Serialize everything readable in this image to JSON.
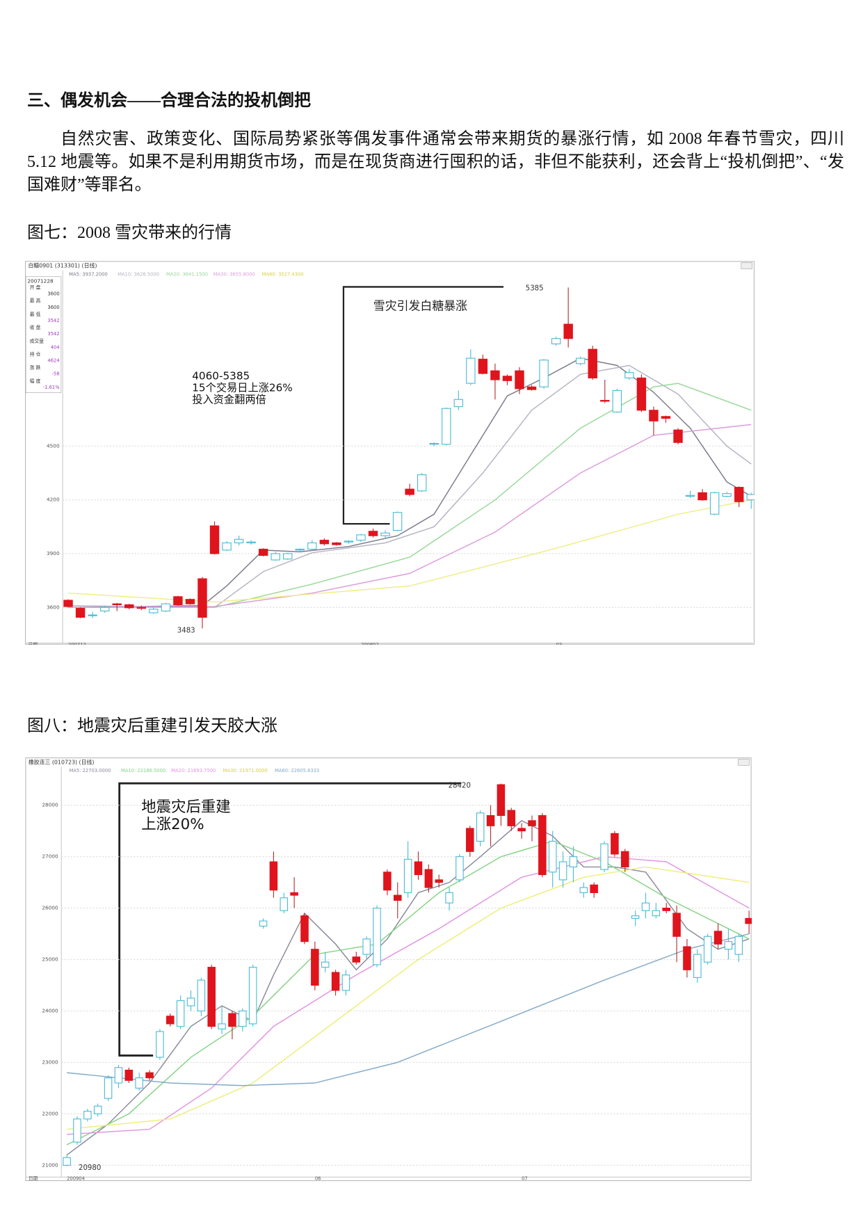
{
  "document": {
    "heading": "三、偶发机会——合理合法的投机倒把",
    "paragraph": "自然灾害、政策变化、国际局势紧张等偶发事件通常会带来期货的暴涨行情，如 2008 年春节雪灾，四川 5.12 地震等。如果不是利用期货市场，而是在现货商进行囤积的话，非但不能获利，还会背上“投机倒把”、“发国难财”等罪名。",
    "captions": [
      "图七：2008 雪灾带来的行情",
      "图八：地震灾后重建引发天胶大涨"
    ]
  },
  "chart_data": [
    {
      "type": "candlestick",
      "title": "白糖0901 (313301) (日线)",
      "axis_label": "日期",
      "ma_legend": [
        "MA5: 3937.2000",
        "MA10: 3626.5000",
        "MA20: 3641.1500",
        "MA30: 3655.8000",
        "MA60: 3527.4300"
      ],
      "info": {
        "date": "20071228",
        "items": [
          {
            "label": "开 盘",
            "value": 3600
          },
          {
            "label": "最 高",
            "value": 3600
          },
          {
            "label": "最 低",
            "value": 3542
          },
          {
            "label": "收 盘",
            "value": 3542
          },
          {
            "label": "成交量",
            "value": 404
          },
          {
            "label": "持 仓",
            "value": 4624
          },
          {
            "label": "涨 跌",
            "value": -58
          },
          {
            "label": "幅 度",
            "value": "-1.61%"
          }
        ]
      },
      "categories": [
        "200712",
        null,
        null,
        null,
        null,
        null,
        null,
        null,
        null,
        null,
        null,
        null,
        null,
        null,
        null,
        null,
        null,
        null,
        null,
        null,
        null,
        null,
        null,
        null,
        "200802",
        null,
        null,
        null,
        null,
        null,
        null,
        null,
        null,
        null,
        null,
        null,
        null,
        null,
        null,
        null,
        "03",
        null,
        null,
        null,
        null,
        null,
        null,
        null,
        null,
        null,
        null,
        null,
        null,
        null,
        null,
        null,
        null
      ],
      "candles": {
        "open": [
          3605,
          3545,
          3558,
          3600,
          3615,
          3598,
          3595,
          3590,
          3620,
          3615,
          3620,
          3545,
          3900,
          3960,
          3980,
          3965,
          3890,
          3900,
          3900,
          3925,
          3960,
          3955,
          3950,
          3970,
          4005,
          4000,
          4015,
          4130,
          4230,
          4340,
          4515,
          4710,
          4760,
          4990,
          4905,
          4870,
          4865,
          4820,
          4815,
          4980,
          5100,
          5100,
          4990,
          4880,
          4750,
          4810,
          4910,
          4700,
          4640,
          4655,
          4520,
          4225,
          4200,
          4240,
          4235,
          4190,
          4230
        ],
        "high": [
          3645,
          3600,
          3575,
          3610,
          3625,
          3620,
          3610,
          3600,
          3625,
          3665,
          3650,
          3770,
          4080,
          3970,
          4000,
          3975,
          3930,
          3910,
          3905,
          3930,
          3975,
          3985,
          3965,
          3975,
          4010,
          4040,
          4030,
          4135,
          4290,
          4350,
          4520,
          4715,
          4810,
          5040,
          5010,
          4960,
          4900,
          4940,
          4840,
          4985,
          5110,
          5385,
          5000,
          5060,
          4870,
          4820,
          4930,
          4900,
          4720,
          4670,
          4600,
          4250,
          4260,
          4245,
          4245,
          4275,
          4240
        ],
        "low": [
          3600,
          3540,
          3540,
          3570,
          3580,
          3590,
          3585,
          3565,
          3575,
          3610,
          3615,
          3483,
          3895,
          3915,
          3945,
          3950,
          3885,
          3860,
          3865,
          3910,
          3920,
          3945,
          3945,
          3955,
          3965,
          3990,
          3985,
          4025,
          4220,
          4245,
          4500,
          4505,
          4700,
          4840,
          4900,
          4760,
          4840,
          4790,
          4810,
          4820,
          5060,
          5050,
          4950,
          4870,
          4740,
          4685,
          4870,
          4690,
          4560,
          4630,
          4510,
          4210,
          4195,
          4115,
          4215,
          4160,
          4150
        ],
        "close": [
          3640,
          3595,
          3555,
          3580,
          3620,
          3615,
          3600,
          3570,
          3580,
          3660,
          3645,
          3760,
          4055,
          3920,
          3960,
          3960,
          3925,
          3865,
          3870,
          3920,
          3925,
          3975,
          3960,
          3965,
          3975,
          4025,
          4000,
          4030,
          4260,
          4250,
          4510,
          4510,
          4720,
          4850,
          4985,
          4920,
          4890,
          4920,
          4830,
          4830,
          5070,
          5180,
          4960,
          5040,
          4755,
          4690,
          4880,
          4880,
          4700,
          4665,
          4590,
          4220,
          4240,
          4120,
          4220,
          4270,
          4200
        ]
      },
      "series": [
        {
          "color": "#7a7a8c",
          "x": [
            0,
            11,
            13,
            16,
            19,
            23,
            27,
            30,
            33,
            36,
            39,
            42,
            45,
            48,
            51,
            54,
            56
          ],
          "values": [
            3600,
            3610,
            3720,
            3920,
            3910,
            3940,
            4000,
            4120,
            4450,
            4780,
            4880,
            4990,
            4950,
            4800,
            4600,
            4300,
            4220
          ]
        },
        {
          "color": "#b4b4c4",
          "x": [
            0,
            12,
            16,
            20,
            26,
            30,
            34,
            38,
            42,
            46,
            50,
            54,
            56
          ],
          "values": [
            3610,
            3600,
            3800,
            3905,
            3960,
            4050,
            4350,
            4700,
            4900,
            4950,
            4790,
            4500,
            4400
          ]
        },
        {
          "color": "#98d898",
          "x": [
            0,
            12,
            20,
            28,
            35,
            42,
            48,
            50,
            56
          ],
          "values": [
            3600,
            3600,
            3730,
            3880,
            4200,
            4600,
            4830,
            4850,
            4700
          ]
        },
        {
          "color": "#dc9cdc",
          "x": [
            0,
            12,
            20,
            28,
            35,
            42,
            48,
            56
          ],
          "values": [
            3600,
            3605,
            3680,
            3790,
            4020,
            4350,
            4560,
            4620
          ]
        },
        {
          "color": "#eeee88",
          "x": [
            0,
            12,
            28,
            40,
            50,
            56
          ],
          "values": [
            3680,
            3630,
            3720,
            3930,
            4120,
            4200
          ]
        }
      ],
      "ylim": [
        3410,
        5480
      ],
      "yticks": [
        3600,
        3900,
        4200,
        4500
      ],
      "grid": true,
      "annotations": [
        5385,
        3483,
        "雪灾引发白糖暴涨",
        "4060-5385",
        "15个交易日上涨26%",
        "投入资金翻两倍"
      ]
    },
    {
      "type": "candlestick",
      "title": "橡胶连三 (010723) (日线)",
      "axis_label": "日期",
      "ma_legend": [
        "MA5: 22703.0000",
        "MA10: 22186.5000",
        "MA20: 21693.7500",
        "MA30: 21971.0000",
        "MA60: 22605.8333"
      ],
      "categories": [
        "200904",
        null,
        null,
        null,
        null,
        null,
        null,
        null,
        null,
        null,
        null,
        null,
        null,
        null,
        null,
        null,
        null,
        null,
        null,
        null,
        null,
        null,
        null,
        null,
        "06",
        null,
        null,
        null,
        null,
        null,
        null,
        null,
        null,
        null,
        null,
        null,
        null,
        null,
        null,
        null,
        null,
        null,
        null,
        null,
        "07",
        null,
        null,
        null,
        null,
        null,
        null,
        null,
        null,
        null,
        null,
        null,
        null,
        null,
        null,
        null,
        null,
        null,
        null,
        null,
        null,
        null,
        null
      ],
      "candles": {
        "open": [
          21150,
          21900,
          22050,
          22150,
          22700,
          22900,
          22650,
          22700,
          22700,
          23600,
          23750,
          24200,
          24250,
          24600,
          23700,
          23750,
          23700,
          24000,
          24850,
          25750,
          26350,
          26200,
          26250,
          25350,
          24500,
          24950,
          24400,
          24700,
          24950,
          25400,
          26000,
          26350,
          26150,
          26950,
          26650,
          26400,
          26500,
          26300,
          27000,
          27100,
          27850,
          27600,
          27800,
          27600,
          27500,
          27600,
          26650,
          27300,
          26900,
          27000,
          26400,
          26300,
          27250,
          27050,
          26800,
          25850,
          26100,
          25950,
          25950,
          25450,
          24800,
          25100,
          25450,
          25300,
          25350,
          25450,
          25700
        ],
        "high": [
          21200,
          21950,
          22100,
          22200,
          22750,
          22950,
          22900,
          22800,
          22850,
          23650,
          23950,
          24300,
          24400,
          24650,
          24900,
          24100,
          24000,
          24050,
          24900,
          25800,
          27100,
          26300,
          26600,
          25900,
          25350,
          25150,
          24800,
          24800,
          25150,
          25450,
          26050,
          26750,
          26500,
          27300,
          27100,
          26850,
          26650,
          26400,
          27050,
          27600,
          27900,
          28000,
          28420,
          27950,
          27650,
          27800,
          27850,
          27500,
          27100,
          27200,
          26500,
          26500,
          27300,
          27500,
          27150,
          25950,
          26300,
          26100,
          26100,
          26050,
          25400,
          25200,
          25500,
          25700,
          25600,
          25500,
          25950
        ],
        "low": [
          20980,
          21400,
          21850,
          21950,
          22250,
          22500,
          22600,
          22450,
          22650,
          23050,
          23700,
          23650,
          24000,
          23900,
          23650,
          23550,
          23450,
          23600,
          23700,
          25600,
          26200,
          25900,
          26000,
          25300,
          24400,
          24750,
          24300,
          24300,
          24900,
          25000,
          24850,
          26250,
          25800,
          26200,
          26550,
          26300,
          26400,
          25950,
          26500,
          27000,
          27200,
          27200,
          27600,
          27500,
          27350,
          27300,
          26600,
          26400,
          26400,
          26500,
          26200,
          26200,
          26700,
          27000,
          26700,
          25650,
          25800,
          25800,
          25900,
          24950,
          24650,
          24550,
          24900,
          25200,
          25000,
          24950,
          25500
        ],
        "close": [
          21000,
          21450,
          21900,
          22000,
          22300,
          22600,
          22850,
          22500,
          22800,
          23100,
          23900,
          23700,
          24100,
          24000,
          24850,
          23650,
          23950,
          23700,
          23750,
          25650,
          26900,
          25950,
          26300,
          25850,
          25200,
          24850,
          24750,
          24400,
          25050,
          25100,
          24900,
          26700,
          26250,
          26300,
          26900,
          26750,
          26550,
          26100,
          26550,
          27550,
          27300,
          27800,
          28400,
          27900,
          27550,
          27700,
          27800,
          26700,
          26550,
          26800,
          26300,
          26450,
          26750,
          27450,
          27100,
          25800,
          25950,
          25850,
          26000,
          25900,
          25250,
          24650,
          24950,
          25550,
          25200,
          25100,
          25800
        ]
      },
      "series": [
        {
          "color": "#8a8a9c",
          "x": [
            0,
            4,
            8,
            12,
            15,
            18,
            20,
            23,
            26,
            28,
            31,
            34,
            37,
            40,
            44,
            47,
            50,
            53,
            56,
            60,
            63,
            66
          ],
          "values": [
            21200,
            21800,
            22600,
            23700,
            24100,
            23800,
            24700,
            25900,
            25300,
            24800,
            25400,
            26300,
            26500,
            27000,
            27700,
            27400,
            26800,
            26800,
            26700,
            25600,
            25200,
            25400
          ]
        },
        {
          "color": "#84d484",
          "x": [
            0,
            6,
            12,
            18,
            24,
            30,
            36,
            42,
            47,
            52,
            58,
            66
          ],
          "values": [
            21400,
            22000,
            23100,
            23900,
            25100,
            25300,
            26300,
            27000,
            27300,
            26900,
            26200,
            25400
          ]
        },
        {
          "color": "#e294e2",
          "x": [
            0,
            8,
            14,
            20,
            28,
            36,
            44,
            52,
            58,
            66
          ],
          "values": [
            21600,
            21700,
            22500,
            23700,
            24700,
            25600,
            26600,
            27000,
            26900,
            26000
          ]
        },
        {
          "color": "#eeee78",
          "x": [
            0,
            10,
            18,
            26,
            34,
            42,
            50,
            56,
            66
          ],
          "values": [
            21700,
            21900,
            22600,
            23800,
            25000,
            26000,
            26600,
            26800,
            26500
          ]
        },
        {
          "color": "#84aac8",
          "x": [
            0,
            10,
            17,
            24,
            32,
            42,
            52,
            60,
            66
          ],
          "values": [
            22800,
            22600,
            22550,
            22600,
            23000,
            23800,
            24600,
            25200,
            25500
          ]
        }
      ],
      "ylim": [
        20800,
        28700
      ],
      "yticks": [
        21000,
        22000,
        23000,
        24000,
        25000,
        26000,
        27000,
        28000
      ],
      "grid": true,
      "annotations": [
        28420,
        20980,
        "地震灾后重建",
        "上涨20%"
      ]
    }
  ]
}
